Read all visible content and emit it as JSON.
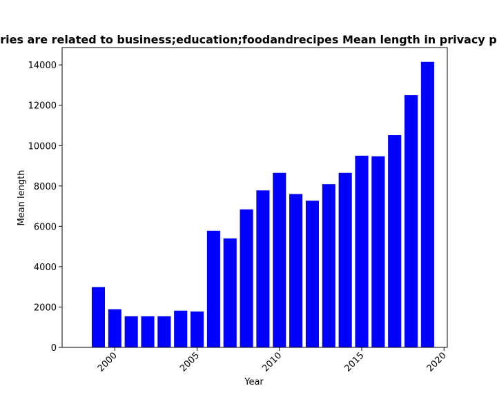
{
  "chart_data": {
    "type": "bar",
    "title": "ries are related to business;education;foodandrecipes Mean length in privacy p",
    "xlabel": "Year",
    "ylabel": "Mean length",
    "x": [
      1999,
      2000,
      2001,
      2002,
      2003,
      2004,
      2005,
      2006,
      2007,
      2008,
      2009,
      2010,
      2011,
      2012,
      2013,
      2014,
      2015,
      2016,
      2017,
      2018,
      2019
    ],
    "values": [
      2990,
      1890,
      1540,
      1540,
      1540,
      1820,
      1780,
      5780,
      5400,
      6840,
      7780,
      8650,
      7600,
      7270,
      8090,
      8650,
      9500,
      9470,
      10520,
      12500,
      14150
    ],
    "xlim": [
      1996.8,
      2020.2
    ],
    "ylim": [
      0,
      14860
    ],
    "xticks": [
      2000,
      2005,
      2010,
      2015,
      2020
    ],
    "yticks": [
      0,
      2000,
      4000,
      6000,
      8000,
      10000,
      12000,
      14000
    ],
    "bar_color": "#0000ff",
    "grid": false
  }
}
